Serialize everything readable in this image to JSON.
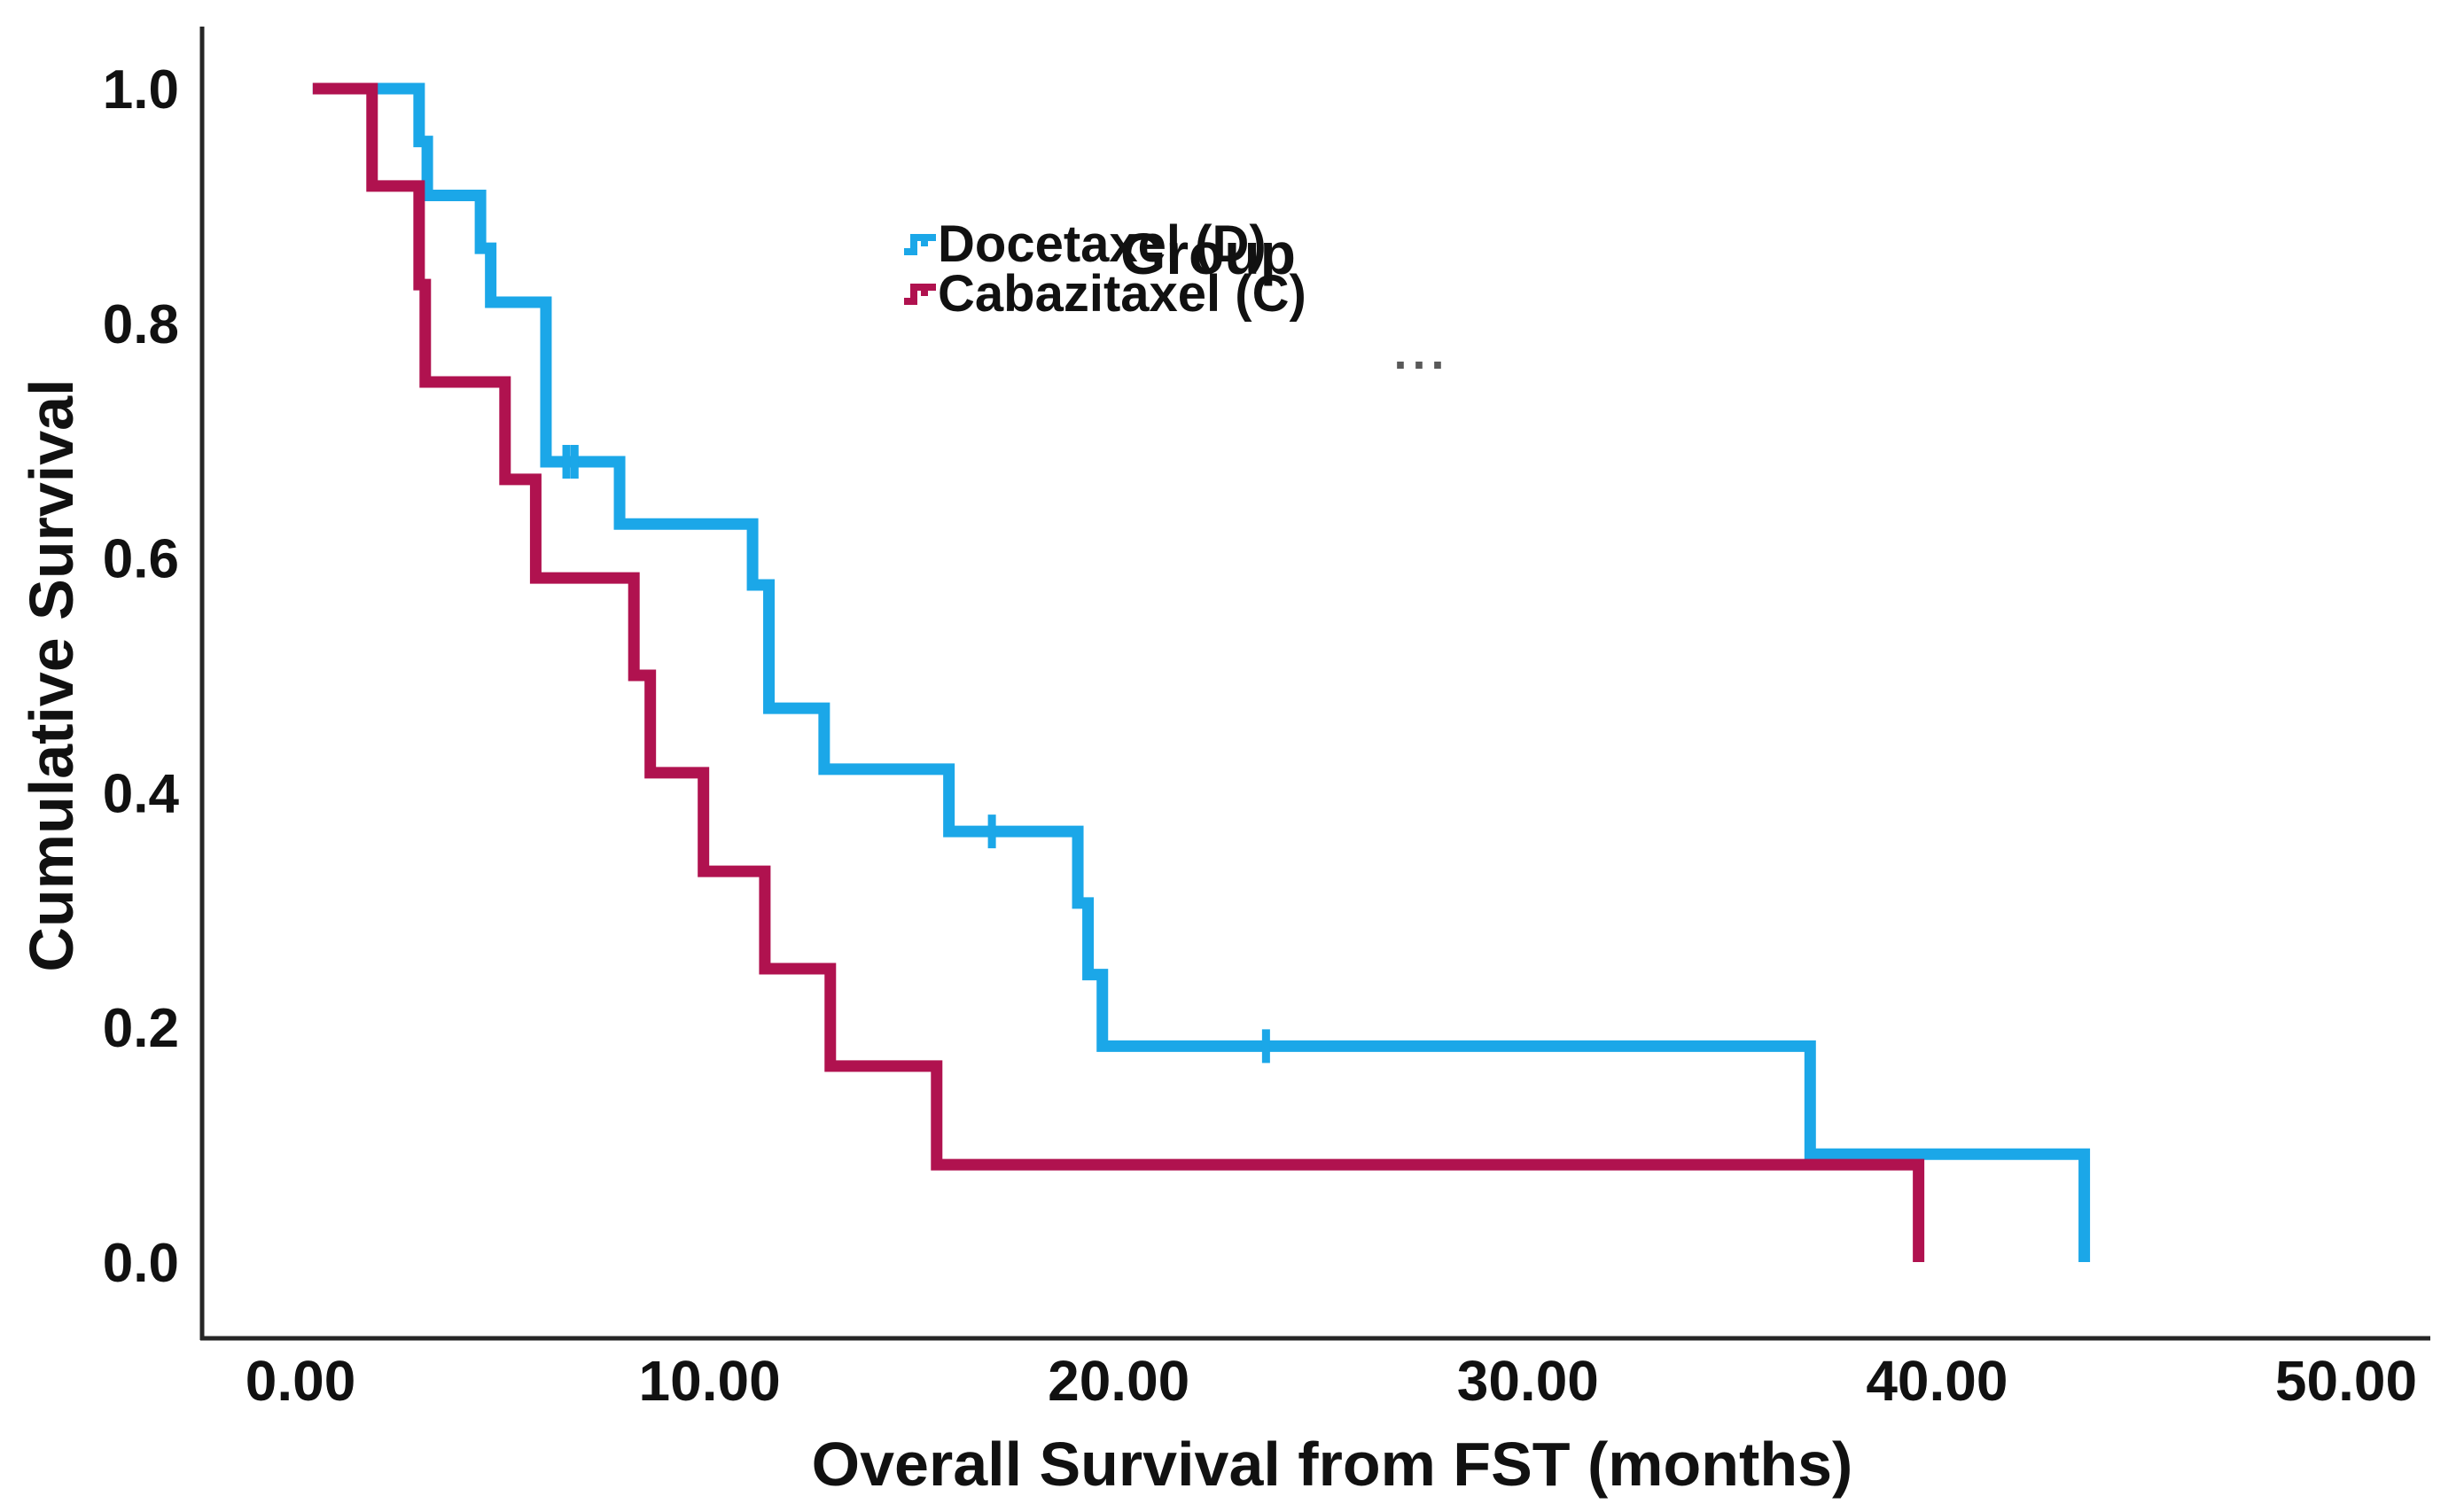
{
  "chart_data": {
    "type": "line",
    "subtype": "kaplan-meier-step",
    "title": "",
    "xlabel": "Overall Survival from FST (months)",
    "ylabel": "Cumulative Survival",
    "xlim": [
      0,
      50
    ],
    "ylim": [
      0.0,
      1.0
    ],
    "grid": false,
    "x_ticks": {
      "values": [
        0,
        10,
        20,
        30,
        40,
        50
      ],
      "labels": [
        "0.00",
        "10.00",
        "20.00",
        "30.00",
        "40.00",
        "50.00"
      ]
    },
    "y_ticks": {
      "values": [
        0.0,
        0.2,
        0.4,
        0.6,
        0.8,
        1.0
      ],
      "labels": [
        "0.0",
        "0.2",
        "0.4",
        "0.6",
        "0.8",
        "1.0"
      ]
    },
    "legend": {
      "title": "Group",
      "position": "top-center-inside"
    },
    "artifact_dots": "...",
    "colors": {
      "docetaxel": "#1BA7E8",
      "cabazitaxel": "#B0124F",
      "axis": "#262626",
      "text": "#111111"
    },
    "series": [
      {
        "name": "Docetaxel (D)",
        "color": "#1BA7E8",
        "steps": [
          [
            0.3,
            1.0
          ],
          [
            2.9,
            0.955
          ],
          [
            3.1,
            0.909
          ],
          [
            4.4,
            0.864
          ],
          [
            4.65,
            0.818
          ],
          [
            6.0,
            0.682
          ],
          [
            7.8,
            0.629
          ],
          [
            11.05,
            0.577
          ],
          [
            11.45,
            0.472
          ],
          [
            12.8,
            0.42
          ],
          [
            15.85,
            0.367
          ],
          [
            19.0,
            0.306
          ],
          [
            19.25,
            0.245
          ],
          [
            19.6,
            0.184
          ],
          [
            36.9,
            0.092
          ],
          [
            43.6,
            0.0
          ]
        ],
        "censored": [
          [
            6.5,
            0.682
          ],
          [
            6.7,
            0.682
          ],
          [
            16.9,
            0.367
          ],
          [
            23.6,
            0.184
          ]
        ]
      },
      {
        "name": "Cabazitaxel (C)",
        "color": "#B0124F",
        "steps": [
          [
            0.3,
            1.0
          ],
          [
            1.75,
            0.917
          ],
          [
            2.9,
            0.833
          ],
          [
            3.05,
            0.75
          ],
          [
            5.0,
            0.667
          ],
          [
            5.75,
            0.583
          ],
          [
            8.15,
            0.5
          ],
          [
            8.55,
            0.417
          ],
          [
            9.85,
            0.333
          ],
          [
            11.35,
            0.25
          ],
          [
            12.95,
            0.167
          ],
          [
            15.55,
            0.083
          ],
          [
            39.55,
            0.0
          ]
        ],
        "censored": []
      }
    ]
  }
}
